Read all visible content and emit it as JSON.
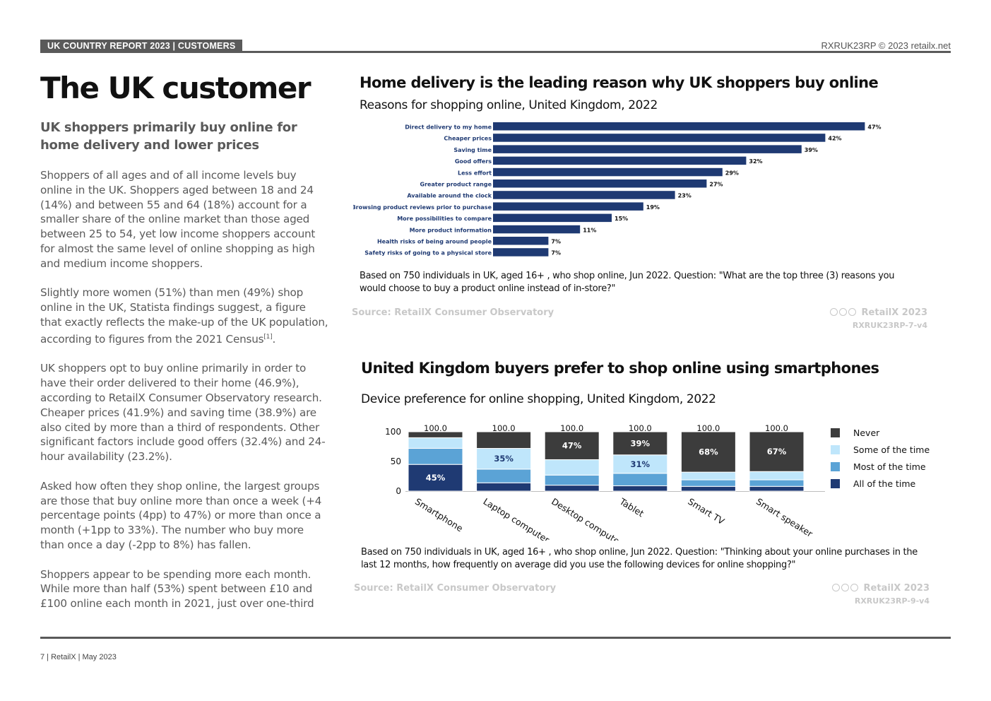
{
  "header": {
    "band": "UK COUNTRY REPORT 2023 | CUSTOMERS",
    "right": "RXRUK23RP © 2023 retailx.net"
  },
  "page": {
    "title": "The UK customer",
    "subtitle": "UK shoppers primarily buy online for home delivery and lower prices",
    "paragraphs": [
      "Shoppers of all ages and of all income levels buy online in the UK. Shoppers aged between 18 and 24 (14%) and between 55 and 64 (18%) account for a smaller share of the online market than those aged between 25 to 54, yet low income shoppers account for almost the same level of online shopping as high and medium income shoppers.",
      "Slightly more women (51%) than men (49%) shop online in the UK, Statista findings suggest, a figure that exactly reflects the make-up of the UK population, according to figures from the 2021 Census",
      "UK shoppers opt to buy online primarily in order to have their order delivered to their home (46.9%), according to RetailX Consumer Observatory research. Cheaper prices (41.9%) and saving time (38.9%) are also cited by more than a third of respondents. Other significant factors include good offers (32.4%) and 24-hour availability (23.2%).",
      "Asked how often they shop online, the largest groups are those that buy online more than once a week (+4 percentage points (4pp) to 47%) or more than once a month (+1pp to 33%). The number who buy more than once a day (-2pp to 8%) has fallen.",
      "Shoppers appear to be spending more each month. While more than half (53%) spent between £10 and £100 online each month in 2021, just over one-third"
    ],
    "footnote_ref": "[1]",
    "footnote_tail": "."
  },
  "footer": {
    "text": "7 | RetailX | May 2023"
  },
  "chart1_meta": {
    "note": "Based on 750 individuals in UK, aged 16+ , who shop online, Jun 2022. Question: \"What are the top three (3) reasons you would choose to buy a product online instead of in-store?\"",
    "source": "Source: RetailX Consumer Observatory",
    "brand": "RetailX 2023",
    "code": "RXRUK23RP-7-v4"
  },
  "chart2_meta": {
    "note": "Based on 750 individuals in UK, aged 16+ , who shop online, Jun 2022. Question: \"Thinking about your online purchases in the last 12 months, how frequently on average did you use the following devices for online shopping?\"",
    "source": "Source: RetailX Consumer Observatory",
    "brand": "RetailX 2023",
    "code": "RXRUK23RP-9-v4"
  },
  "chart_data": [
    {
      "type": "bar",
      "orientation": "horizontal",
      "title": "Home delivery is the leading reason why UK shoppers buy online",
      "subtitle": "Reasons for shopping online, United Kingdom, 2022",
      "categories": [
        "Direct delivery to my home",
        "Cheaper prices",
        "Saving time",
        "Good offers",
        "Less effort",
        "Greater product range",
        "Available around the clock",
        "Browsing product reviews prior to purchase",
        "More possibilities to compare",
        "More product information",
        "Health risks of being around people",
        "Safety risks of going to a physical store"
      ],
      "values": [
        47,
        42,
        39,
        32,
        29,
        27,
        23,
        19,
        15,
        11,
        7,
        7
      ],
      "labels": [
        "47%",
        "42%",
        "39%",
        "32%",
        "29%",
        "27%",
        "23%",
        "19%",
        "15%",
        "11%",
        "7%",
        "7%"
      ],
      "xlim": [
        0,
        50
      ],
      "color": "#1f3a73"
    },
    {
      "type": "bar",
      "stacked": true,
      "title": "United Kingdom buyers prefer to shop online using smartphones",
      "subtitle": "Device preference for online shopping, United Kingdom, 2022",
      "categories": [
        "Smartphone",
        "Laptop computer",
        "Desktop computer",
        "Tablet",
        "Smart TV",
        "Smart speaker"
      ],
      "totals": [
        "100.0",
        "100.0",
        "100.0",
        "100.0",
        "100.0",
        "100.0"
      ],
      "ylim": [
        0,
        100
      ],
      "yticks": [
        "0",
        "50",
        "100"
      ],
      "series": [
        {
          "name": "All of the time",
          "color": "#1f3a73",
          "values": [
            45,
            14,
            10,
            9,
            8,
            8
          ],
          "labels": [
            "45%",
            "",
            "",
            "",
            "",
            ""
          ]
        },
        {
          "name": "Most of the time",
          "color": "#5ba3d6",
          "values": [
            27,
            23,
            17,
            21,
            11,
            11
          ],
          "labels": [
            "",
            "",
            "",
            "",
            "",
            ""
          ]
        },
        {
          "name": "Some of the time",
          "color": "#bfe6fb",
          "values": [
            18,
            35,
            26,
            31,
            13,
            14
          ],
          "labels": [
            "",
            "35%",
            "",
            "31%",
            "",
            ""
          ]
        },
        {
          "name": "Never",
          "color": "#3c3c3c",
          "values": [
            10,
            28,
            47,
            39,
            68,
            67
          ],
          "labels": [
            "",
            "",
            "47%",
            "39%",
            "68%",
            "67%"
          ]
        }
      ],
      "legend_order": [
        "Never",
        "Some of the time",
        "Most of the time",
        "All of the time"
      ],
      "legend_position": "right"
    }
  ]
}
